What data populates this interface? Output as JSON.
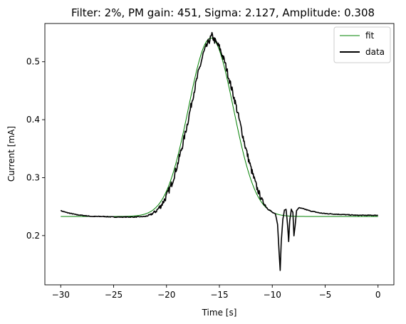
{
  "chart_data": {
    "type": "line",
    "title": "Filter: 2%, PM gain: 451, Sigma: 2.127, Amplitude: 0.308",
    "xlabel": "Time [s]",
    "ylabel": "Current [mA]",
    "xlim": [
      -31.5,
      1.5
    ],
    "ylim": [
      0.115,
      0.566
    ],
    "xticks": [
      -30,
      -25,
      -20,
      -15,
      -10,
      -5,
      0
    ],
    "xtick_labels": [
      "−30",
      "−25",
      "−20",
      "−15",
      "−10",
      "−5",
      "0"
    ],
    "yticks": [
      0.2,
      0.3,
      0.4,
      0.5
    ],
    "ytick_labels": [
      "0.2",
      "0.3",
      "0.4",
      "0.5"
    ],
    "grid": false,
    "legend_position": "top-right",
    "series": [
      {
        "name": "fit",
        "color": "#008000",
        "style": "thin",
        "model": "gaussian",
        "baseline": 0.233,
        "amplitude": 0.308,
        "center": -15.8,
        "sigma": 2.127,
        "x_range": [
          -30,
          0
        ]
      },
      {
        "name": "data",
        "color": "#000000",
        "style": "thick",
        "noise_from": -22,
        "noise_to": -10,
        "noise_amplitude": 0.006,
        "points": [
          [
            -30,
            0.243
          ],
          [
            -29.5,
            0.24
          ],
          [
            -29,
            0.238
          ],
          [
            -28.5,
            0.236
          ],
          [
            -28,
            0.235
          ],
          [
            -27.5,
            0.234
          ],
          [
            -27,
            0.233
          ],
          [
            -26,
            0.233
          ],
          [
            -25,
            0.232
          ],
          [
            -24,
            0.232
          ],
          [
            -23,
            0.232
          ],
          [
            -22,
            0.233
          ],
          [
            -21.5,
            0.236
          ],
          [
            -21,
            0.242
          ],
          [
            -20.5,
            0.252
          ],
          [
            -20,
            0.268
          ],
          [
            -19.5,
            0.29
          ],
          [
            -19,
            0.32
          ],
          [
            -18.5,
            0.355
          ],
          [
            -18,
            0.395
          ],
          [
            -17.5,
            0.44
          ],
          [
            -17,
            0.48
          ],
          [
            -16.5,
            0.515
          ],
          [
            -16,
            0.535
          ],
          [
            -15.7,
            0.545
          ],
          [
            -15.5,
            0.538
          ],
          [
            -15,
            0.525
          ],
          [
            -14.5,
            0.5
          ],
          [
            -14,
            0.465
          ],
          [
            -13.5,
            0.43
          ],
          [
            -13,
            0.39
          ],
          [
            -12.5,
            0.35
          ],
          [
            -12,
            0.315
          ],
          [
            -11.5,
            0.285
          ],
          [
            -11,
            0.262
          ],
          [
            -10.5,
            0.248
          ],
          [
            -10,
            0.24
          ],
          [
            -9.7,
            0.237
          ],
          [
            -9.5,
            0.22
          ],
          [
            -9.35,
            0.17
          ],
          [
            -9.25,
            0.14
          ],
          [
            -9.15,
            0.19
          ],
          [
            -9,
            0.228
          ],
          [
            -8.85,
            0.244
          ],
          [
            -8.7,
            0.246
          ],
          [
            -8.55,
            0.218
          ],
          [
            -8.45,
            0.19
          ],
          [
            -8.35,
            0.225
          ],
          [
            -8.2,
            0.245
          ],
          [
            -8.05,
            0.24
          ],
          [
            -7.95,
            0.2
          ],
          [
            -7.85,
            0.215
          ],
          [
            -7.7,
            0.243
          ],
          [
            -7.5,
            0.248
          ],
          [
            -7,
            0.246
          ],
          [
            -6.5,
            0.243
          ],
          [
            -6,
            0.241
          ],
          [
            -5.5,
            0.239
          ],
          [
            -5,
            0.238
          ],
          [
            -4,
            0.237
          ],
          [
            -3,
            0.236
          ],
          [
            -2,
            0.235
          ],
          [
            -1,
            0.235
          ],
          [
            0,
            0.235
          ]
        ]
      }
    ]
  }
}
